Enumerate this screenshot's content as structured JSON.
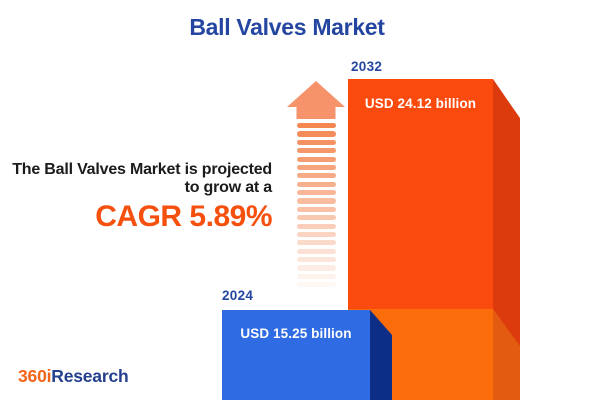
{
  "page": {
    "background": "#ffffff"
  },
  "title": {
    "text": "Ball Valves Market",
    "color": "#2446A0"
  },
  "annotation": {
    "line1": "The Ball Valves Market is projected",
    "line2": "to grow at a",
    "cagr_label": "CAGR 5.89%",
    "cagr_color": "#F6500F",
    "text_color": "#1B1B1B"
  },
  "arrow": {
    "name": "growth-arrow",
    "stripe_color": "#F28048",
    "head_color": "#F6936B"
  },
  "bars": {
    "b2024": {
      "year": "2024",
      "value_label": "USD 15.25 billion",
      "face_color": "#2F6BE2",
      "side_color": "#0C2E87"
    },
    "b2032": {
      "year": "2032",
      "value_label": "USD 24.12 billion",
      "face_color": "#FB4A0D",
      "side_color": "#DC3B0E",
      "base_face_color": "#FB6D0A",
      "base_side_color": "#E35B10"
    }
  },
  "logo": {
    "part1": "360i",
    "part1_color": "#F4641A",
    "part2": "Research",
    "part2_color": "#24408E"
  },
  "chart_data": {
    "type": "bar",
    "title": "Ball Valves Market",
    "categories": [
      "2024",
      "2032"
    ],
    "values": [
      15.25,
      24.12
    ],
    "unit": "USD billion",
    "value_labels": [
      "USD 15.25 billion",
      "USD 24.12 billion"
    ],
    "cagr_percent": 5.89,
    "annotation": "The Ball Valves Market is projected to grow at a CAGR 5.89%",
    "orientation": "vertical",
    "grid": false,
    "legend_position": "none",
    "series_colors": {
      "2024": "#2F6BE2",
      "2032": "#FB4A0D"
    }
  }
}
